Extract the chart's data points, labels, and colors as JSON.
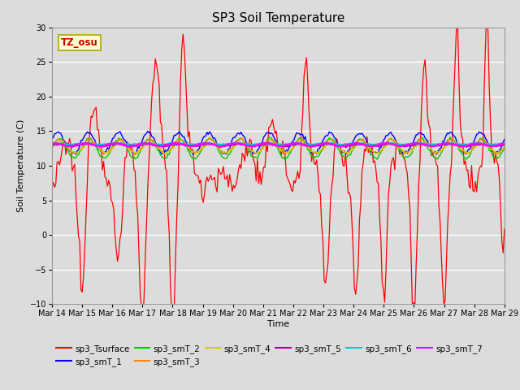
{
  "title": "SP3 Soil Temperature",
  "xlabel": "Time",
  "ylabel": "Soil Temperature (C)",
  "ylim": [
    -10,
    30
  ],
  "background_color": "#dcdcdc",
  "plot_bg_color": "#dcdcdc",
  "annotation_text": "TZ_osu",
  "annotation_bg": "#ffffcc",
  "annotation_border": "#aaaa00",
  "series_colors": {
    "sp3_Tsurface": "#ff0000",
    "sp3_smT_1": "#0000ff",
    "sp3_smT_2": "#00cc00",
    "sp3_smT_3": "#ff8800",
    "sp3_smT_4": "#cccc00",
    "sp3_smT_5": "#aa00aa",
    "sp3_smT_6": "#00cccc",
    "sp3_smT_7": "#ff00ff"
  },
  "x_tick_labels": [
    "Mar 14",
    "Mar 15",
    "Mar 16",
    "Mar 17",
    "Mar 18",
    "Mar 19",
    "Mar 20",
    "Mar 21",
    "Mar 22",
    "Mar 23",
    "Mar 24",
    "Mar 25",
    "Mar 26",
    "Mar 27",
    "Mar 28",
    "Mar 29"
  ],
  "x_tick_positions": [
    0,
    24,
    48,
    72,
    96,
    120,
    144,
    168,
    192,
    216,
    240,
    264,
    288,
    312,
    336,
    360
  ]
}
